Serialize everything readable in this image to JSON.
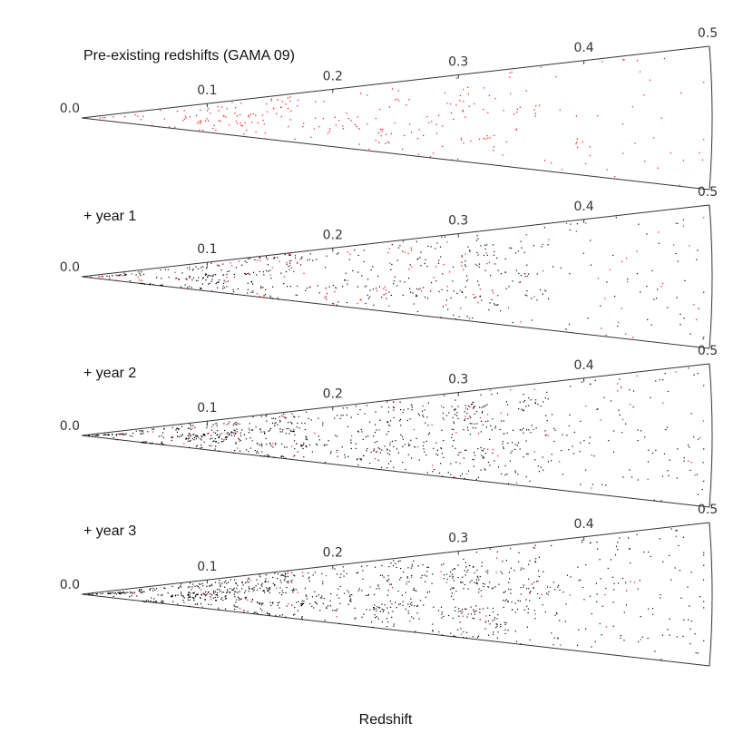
{
  "chart_data": {
    "type": "scatter",
    "title": "",
    "xlabel": "Redshift",
    "xlim": [
      0.0,
      0.5
    ],
    "x_ticks": [
      "0.0",
      "0.1",
      "0.2",
      "0.3",
      "0.4",
      "0.5"
    ],
    "colors": {
      "pre_existing": "#ff0000",
      "new": "#000000",
      "edges": "#333333"
    },
    "panels": [
      {
        "label": "Pre-existing redshifts (GAMA 09)",
        "black_density": 0.0,
        "red_density": 1.0
      },
      {
        "label": "+ year 1",
        "black_density": 0.45,
        "red_density": 0.55
      },
      {
        "label": "+ year 2",
        "black_density": 0.8,
        "red_density": 0.35
      },
      {
        "label": "+ year 3",
        "black_density": 1.0,
        "red_density": 0.25
      }
    ]
  }
}
